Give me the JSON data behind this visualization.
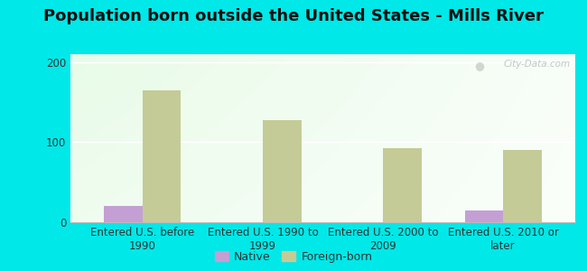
{
  "title": "Population born outside the United States - Mills River",
  "categories": [
    "Entered U.S. before\n1990",
    "Entered U.S. 1990 to\n1999",
    "Entered U.S. 2000 to\n2009",
    "Entered U.S. 2010 or\nlater"
  ],
  "native_values": [
    20,
    0,
    0,
    15
  ],
  "foreign_values": [
    165,
    128,
    93,
    90
  ],
  "native_color": "#c49fd4",
  "foreign_color": "#c5cb96",
  "ylim": [
    0,
    210
  ],
  "yticks": [
    0,
    100,
    200
  ],
  "bg_color": "#00e8e8",
  "bar_width": 0.32,
  "title_fontsize": 13,
  "tick_fontsize": 8.5,
  "legend_fontsize": 9,
  "watermark": "City-Data.com",
  "gradient_left": "#c8e8c8",
  "gradient_right": "#f0f8f0",
  "gradient_top": "#d8eed8",
  "gradient_bottom": "#ffffff"
}
